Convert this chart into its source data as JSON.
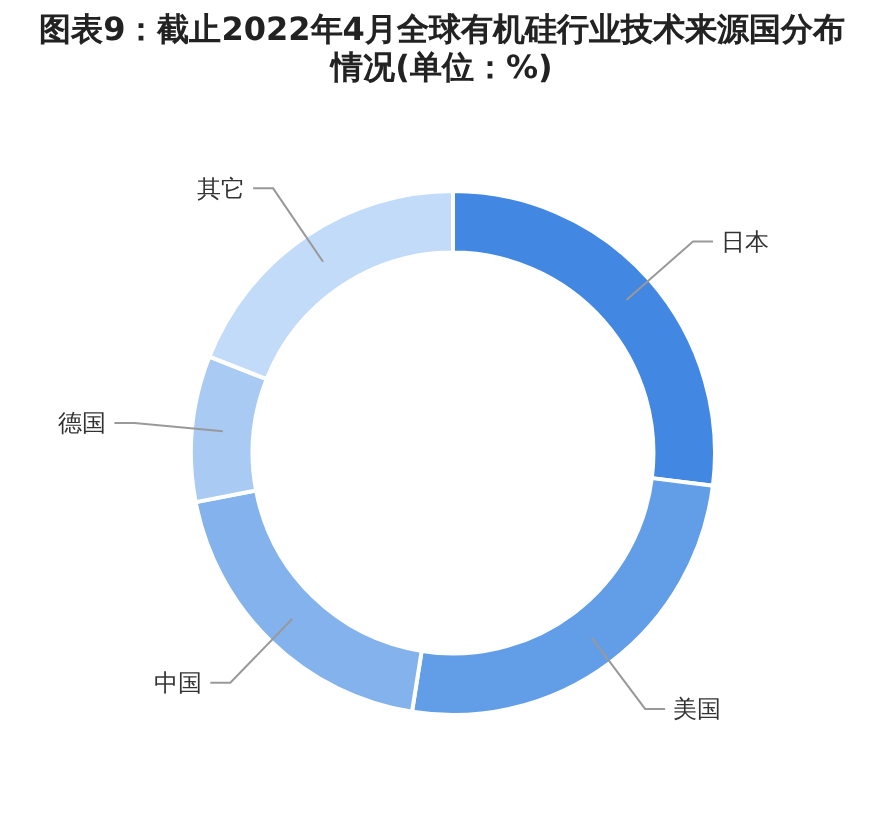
{
  "chart_data": {
    "type": "donut",
    "title": "图表9：截止2022年4月全球有机硅行业技术来源国分布情况(单位：%)",
    "categories": [
      "日本",
      "美国",
      "中国",
      "德国",
      "其它"
    ],
    "values": [
      27,
      25.5,
      19.5,
      9,
      19
    ],
    "colors": [
      "#4287e2",
      "#629de8",
      "#84b2ec",
      "#a8caf3",
      "#c1dbf8"
    ]
  }
}
